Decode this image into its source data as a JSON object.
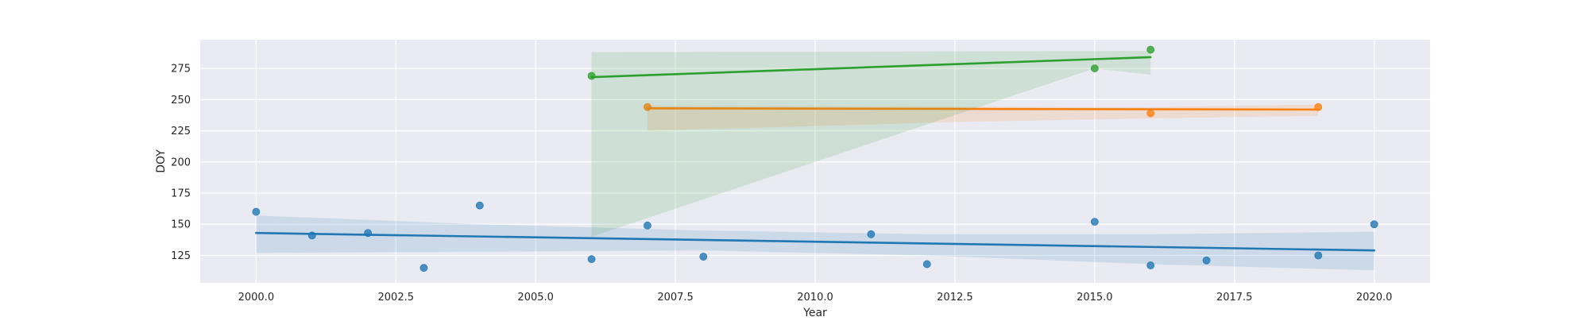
{
  "chart_data": {
    "type": "scatter",
    "title": "",
    "xlabel": "Year",
    "ylabel": "DOY",
    "xlim": [
      1999.0,
      2021.0
    ],
    "ylim": [
      103,
      298
    ],
    "xticks": [
      2000.0,
      2002.5,
      2005.0,
      2007.5,
      2010.0,
      2012.5,
      2015.0,
      2017.5,
      2020.0
    ],
    "xtick_labels": [
      "2000.0",
      "2002.5",
      "2005.0",
      "2007.5",
      "2010.0",
      "2012.5",
      "2015.0",
      "2017.5",
      "2020.0"
    ],
    "yticks": [
      125,
      150,
      175,
      200,
      225,
      250,
      275
    ],
    "ytick_labels": [
      "125",
      "150",
      "175",
      "200",
      "225",
      "250",
      "275"
    ],
    "grid": true,
    "legend": "none",
    "background": "#eaeaf2",
    "series": [
      {
        "color": "#1f77b4",
        "points": [
          [
            2000,
            160
          ],
          [
            2001,
            141
          ],
          [
            2002,
            143
          ],
          [
            2003,
            115
          ],
          [
            2004,
            165
          ],
          [
            2006,
            122
          ],
          [
            2007,
            149
          ],
          [
            2008,
            124
          ],
          [
            2011,
            142
          ],
          [
            2012,
            118
          ],
          [
            2015,
            152
          ],
          [
            2016,
            117
          ],
          [
            2017,
            121
          ],
          [
            2019,
            125
          ],
          [
            2020,
            150
          ]
        ],
        "fit": [
          [
            2000,
            143
          ],
          [
            2020,
            129
          ]
        ],
        "ci_upper": [
          [
            2000,
            157
          ],
          [
            2004,
            150
          ],
          [
            2008,
            145
          ],
          [
            2012,
            142
          ],
          [
            2016,
            142
          ],
          [
            2020,
            144
          ]
        ],
        "ci_lower": [
          [
            2000,
            127
          ],
          [
            2004,
            128
          ],
          [
            2008,
            129
          ],
          [
            2012,
            125
          ],
          [
            2016,
            118
          ],
          [
            2020,
            113
          ]
        ]
      },
      {
        "color": "#ff7f0e",
        "points": [
          [
            2007,
            244
          ],
          [
            2016,
            239
          ],
          [
            2019,
            244
          ]
        ],
        "fit": [
          [
            2007,
            243
          ],
          [
            2019,
            242
          ]
        ],
        "ci_upper": [
          [
            2007,
            245
          ],
          [
            2016,
            244
          ],
          [
            2019,
            246
          ]
        ],
        "ci_lower": [
          [
            2007,
            225
          ],
          [
            2012.5,
            232
          ],
          [
            2016,
            235
          ],
          [
            2019,
            237
          ]
        ]
      },
      {
        "color": "#2ca02c",
        "points": [
          [
            2006,
            269
          ],
          [
            2015,
            275
          ],
          [
            2016,
            290
          ]
        ],
        "fit": [
          [
            2006,
            268
          ],
          [
            2016,
            284
          ]
        ],
        "ci_upper": [
          [
            2006,
            288
          ],
          [
            2016,
            289
          ]
        ],
        "ci_lower": [
          [
            2006,
            140
          ],
          [
            2015,
            275
          ],
          [
            2016,
            270
          ]
        ]
      }
    ]
  }
}
